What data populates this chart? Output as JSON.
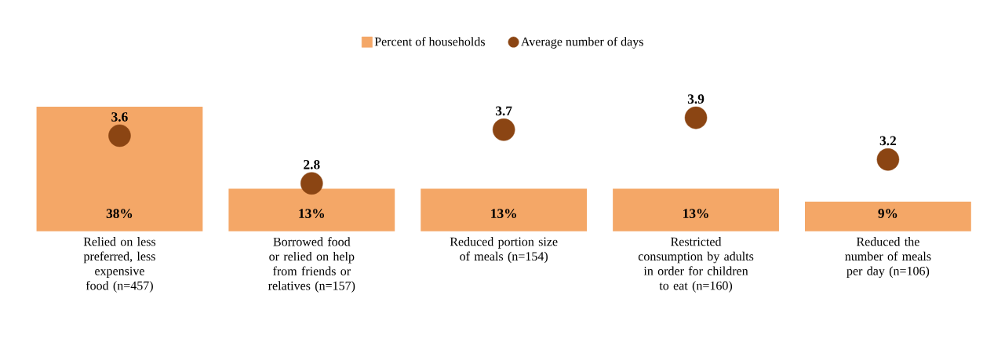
{
  "chart_data": {
    "type": "bar",
    "categories": [
      "Relied on less preferred, less expensive food (n=457)",
      "Borrowed food or relied on help from friends or relatives (n=157)",
      "Reduced portion size of meals (n=154)",
      "Restricted consumption by adults in order for children to eat (n=160)",
      "Reduced the number of meals per day (n=106)"
    ],
    "series": [
      {
        "name": "Percent of households",
        "color": "#f4a767",
        "values": [
          38,
          13,
          13,
          13,
          9
        ],
        "value_labels": [
          "38%",
          "13%",
          "13%",
          "13%",
          "9%"
        ]
      },
      {
        "name": "Average number of days",
        "type": "scatter",
        "axis": "y2",
        "color": "#8b4513",
        "values": [
          3.6,
          2.8,
          3.7,
          3.9,
          3.2
        ],
        "value_labels": [
          "3.6",
          "2.8",
          "3.7",
          "3.9",
          "3.2"
        ]
      }
    ],
    "tick_labels": "x",
    "legend": "top",
    "marker": "circle"
  }
}
